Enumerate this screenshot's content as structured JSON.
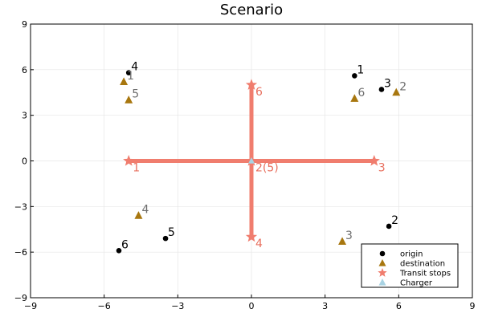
{
  "chart_data": {
    "type": "scatter",
    "title": "Scenario",
    "xlabel": "",
    "ylabel": "",
    "xlim": [
      -9,
      9
    ],
    "ylim": [
      -9,
      9
    ],
    "xticks": [
      -9,
      -6,
      -3,
      0,
      3,
      6,
      9
    ],
    "yticks": [
      -9,
      -6,
      -3,
      0,
      3,
      6,
      9
    ],
    "xtick_labels": [
      "−9",
      "−6",
      "−3",
      "0",
      "3",
      "6",
      "9"
    ],
    "ytick_labels": [
      "−9",
      "−6",
      "−3",
      "0",
      "3",
      "6",
      "9"
    ],
    "grid": true,
    "legend_position": "bottom-right",
    "colors": {
      "origin": "#000000",
      "destination": "#a8770f",
      "transit": "#f07d6e",
      "charger": "#a9d3e3",
      "label_gray": "#6e6e6e",
      "label_salmon": "#e8705f"
    },
    "lines": [
      {
        "x": [
          -5.0,
          5.0
        ],
        "y": [
          0,
          0
        ]
      },
      {
        "x": [
          0,
          0
        ],
        "y": [
          -5.0,
          5.0
        ]
      }
    ],
    "series": [
      {
        "name": "origin",
        "marker": "circle",
        "points": [
          {
            "x": 4.2,
            "y": 5.6,
            "label": "1"
          },
          {
            "x": 5.6,
            "y": -4.3,
            "label": "2"
          },
          {
            "x": 5.3,
            "y": 4.7,
            "label": "3"
          },
          {
            "x": -5.0,
            "y": 5.8,
            "label": "4"
          },
          {
            "x": -3.5,
            "y": -5.1,
            "label": "5"
          },
          {
            "x": -5.4,
            "y": -5.9,
            "label": "6"
          }
        ]
      },
      {
        "name": "destination",
        "marker": "triangle",
        "points": [
          {
            "x": -5.2,
            "y": 5.2,
            "label": "1"
          },
          {
            "x": 5.9,
            "y": 4.5,
            "label": "2"
          },
          {
            "x": 3.7,
            "y": -5.3,
            "label": "3"
          },
          {
            "x": -4.6,
            "y": -3.6,
            "label": "4"
          },
          {
            "x": -5.0,
            "y": 4.0,
            "label": "5"
          },
          {
            "x": 4.2,
            "y": 4.1,
            "label": "6"
          }
        ]
      },
      {
        "name": "Transit stops",
        "marker": "star",
        "points": [
          {
            "x": -5.0,
            "y": 0,
            "label": "1"
          },
          {
            "x": 0,
            "y": 0,
            "label": "2(5)"
          },
          {
            "x": 5.0,
            "y": 0,
            "label": "3"
          },
          {
            "x": 0,
            "y": -5.0,
            "label": "4"
          },
          {
            "x": 0,
            "y": 5.0,
            "label": "6"
          }
        ]
      },
      {
        "name": "Charger",
        "marker": "triangle",
        "points": [
          {
            "x": 0,
            "y": 0,
            "label": ""
          }
        ]
      }
    ]
  }
}
